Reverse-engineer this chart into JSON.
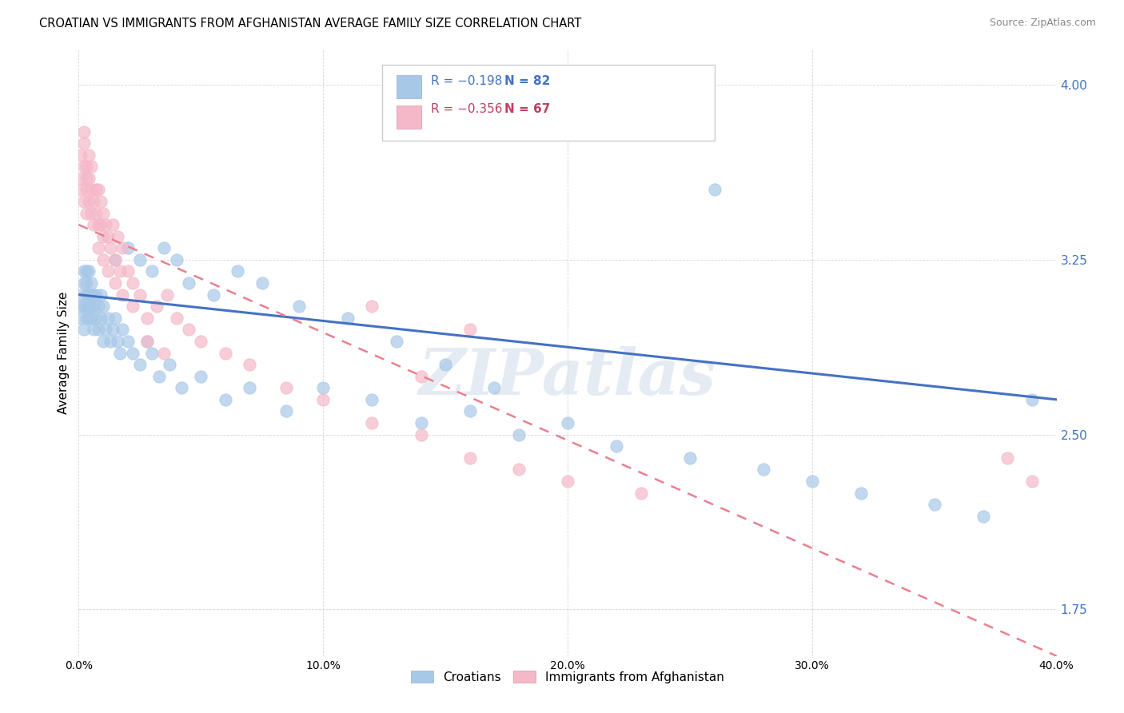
{
  "title": "CROATIAN VS IMMIGRANTS FROM AFGHANISTAN AVERAGE FAMILY SIZE CORRELATION CHART",
  "source": "Source: ZipAtlas.com",
  "ylabel": "Average Family Size",
  "xlim": [
    0.0,
    0.4
  ],
  "ylim": [
    1.55,
    4.15
  ],
  "yticks": [
    1.75,
    2.5,
    3.25,
    4.0
  ],
  "xticks": [
    0.0,
    0.1,
    0.2,
    0.3,
    0.4
  ],
  "xticklabels": [
    "0.0%",
    "10.0%",
    "20.0%",
    "30.0%",
    "40.0%"
  ],
  "croatians_color": "#a8c8e8",
  "afghanistan_color": "#f5b8c8",
  "trendline_croatians_color": "#4472c4",
  "trendline_afghanistan_color": "#e88090",
  "watermark": "ZIPatlas",
  "legend_labels": [
    "Croatians",
    "Immigrants from Afghanistan"
  ],
  "legend_r1": "R = −0.198",
  "legend_n1": "N = 82",
  "legend_r2": "R = −0.356",
  "legend_n2": "N = 67",
  "legend_color1": "#4472c4",
  "legend_color2": "#c04060",
  "croatians_x": [
    0.001,
    0.001,
    0.001,
    0.002,
    0.002,
    0.002,
    0.002,
    0.003,
    0.003,
    0.003,
    0.003,
    0.003,
    0.004,
    0.004,
    0.004,
    0.004,
    0.005,
    0.005,
    0.005,
    0.005,
    0.006,
    0.006,
    0.006,
    0.007,
    0.007,
    0.008,
    0.008,
    0.009,
    0.009,
    0.01,
    0.01,
    0.011,
    0.012,
    0.013,
    0.014,
    0.015,
    0.016,
    0.017,
    0.018,
    0.02,
    0.022,
    0.025,
    0.028,
    0.03,
    0.033,
    0.037,
    0.042,
    0.05,
    0.06,
    0.07,
    0.085,
    0.1,
    0.12,
    0.14,
    0.16,
    0.18,
    0.2,
    0.22,
    0.25,
    0.28,
    0.3,
    0.32,
    0.35,
    0.37,
    0.39,
    0.015,
    0.02,
    0.025,
    0.03,
    0.035,
    0.04,
    0.045,
    0.055,
    0.065,
    0.075,
    0.09,
    0.11,
    0.13,
    0.15,
    0.17,
    0.21,
    0.26
  ],
  "croatians_y": [
    3.1,
    3.05,
    3.0,
    3.15,
    3.2,
    3.05,
    2.95,
    3.2,
    3.1,
    3.05,
    3.0,
    3.15,
    3.1,
    3.2,
    3.05,
    3.0,
    3.15,
    3.1,
    3.0,
    3.05,
    3.1,
    3.05,
    2.95,
    3.0,
    3.1,
    3.05,
    2.95,
    3.0,
    3.1,
    3.05,
    2.9,
    2.95,
    3.0,
    2.9,
    2.95,
    3.0,
    2.9,
    2.85,
    2.95,
    2.9,
    2.85,
    2.8,
    2.9,
    2.85,
    2.75,
    2.8,
    2.7,
    2.75,
    2.65,
    2.7,
    2.6,
    2.7,
    2.65,
    2.55,
    2.6,
    2.5,
    2.55,
    2.45,
    2.4,
    2.35,
    2.3,
    2.25,
    2.2,
    2.15,
    2.65,
    3.25,
    3.3,
    3.25,
    3.2,
    3.3,
    3.25,
    3.15,
    3.1,
    3.2,
    3.15,
    3.05,
    3.0,
    2.9,
    2.8,
    2.7,
    4.05,
    3.55
  ],
  "afghanistan_x": [
    0.001,
    0.001,
    0.001,
    0.002,
    0.002,
    0.002,
    0.002,
    0.003,
    0.003,
    0.003,
    0.003,
    0.004,
    0.004,
    0.004,
    0.005,
    0.005,
    0.005,
    0.006,
    0.006,
    0.007,
    0.007,
    0.008,
    0.008,
    0.009,
    0.009,
    0.01,
    0.01,
    0.011,
    0.012,
    0.013,
    0.014,
    0.015,
    0.016,
    0.017,
    0.018,
    0.02,
    0.022,
    0.025,
    0.028,
    0.032,
    0.036,
    0.04,
    0.045,
    0.05,
    0.06,
    0.07,
    0.085,
    0.1,
    0.12,
    0.14,
    0.16,
    0.18,
    0.2,
    0.23,
    0.008,
    0.01,
    0.012,
    0.015,
    0.018,
    0.022,
    0.028,
    0.035,
    0.38,
    0.39,
    0.12,
    0.14,
    0.16
  ],
  "afghanistan_y": [
    3.6,
    3.7,
    3.55,
    3.65,
    3.75,
    3.5,
    3.8,
    3.6,
    3.45,
    3.55,
    3.65,
    3.5,
    3.7,
    3.6,
    3.55,
    3.45,
    3.65,
    3.5,
    3.4,
    3.55,
    3.45,
    3.4,
    3.55,
    3.5,
    3.4,
    3.45,
    3.35,
    3.4,
    3.35,
    3.3,
    3.4,
    3.25,
    3.35,
    3.2,
    3.3,
    3.2,
    3.15,
    3.1,
    3.0,
    3.05,
    3.1,
    3.0,
    2.95,
    2.9,
    2.85,
    2.8,
    2.7,
    2.65,
    2.55,
    2.5,
    2.4,
    2.35,
    2.3,
    2.25,
    3.3,
    3.25,
    3.2,
    3.15,
    3.1,
    3.05,
    2.9,
    2.85,
    2.4,
    2.3,
    3.05,
    2.75,
    2.95
  ]
}
